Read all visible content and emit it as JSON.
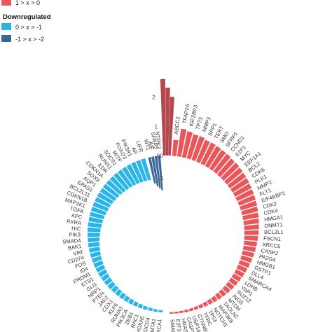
{
  "legend": {
    "up_item": {
      "label": "1 > x > 0",
      "color": "#e8575a"
    },
    "title": "Downregulated",
    "down_items": [
      {
        "label": "0 > x > -1",
        "color": "#29b5e8"
      },
      {
        "label": "-1 > x > -2",
        "color": "#3a6595"
      }
    ]
  },
  "colors": {
    "up_dark": "#b5484f",
    "up": "#e8575a",
    "down": "#29b5e8",
    "down_dark": "#3a6595"
  },
  "chart_data": {
    "type": "bar",
    "layout": "circular",
    "radial_ticks": [
      "2",
      "1",
      "0"
    ],
    "down_ticks": [
      "0",
      "1"
    ],
    "dark_up": [
      {
        "value": 2.6
      },
      {
        "value": 2.3
      },
      {
        "value": 2.0
      }
    ],
    "up_series": {
      "labels": [
        "ABCC2",
        "TFAP2A",
        "IGF2BP3",
        "TP73",
        "MMP3",
        "SPP1",
        "TERT",
        "SMO",
        "SFRP1",
        "CCND1",
        "E2F1",
        "MYC",
        "EEF1A1",
        "BCL2",
        "CDK6",
        "PLK1",
        "MMP2",
        "FLT1",
        "EIF4EBP1",
        "CDK2",
        "CDK4",
        "HMGA1",
        "DNMT1",
        "BCL2L1",
        "FSCN1",
        "XRCC5",
        "CASP2",
        "PA2G4",
        "HMGB1",
        "GSTP1",
        "DLL4",
        "SMARCA4",
        "LDHB",
        "YAP1",
        "SUZ12",
        "ING5",
        "MTDH",
        "TAGLN2",
        "MAP3K8",
        "NOTCH1",
        "TP53",
        "TFRC",
        "CTNNB1",
        "USP14",
        "CASP3",
        "HRAS",
        "E2F3",
        "SMAD4"
      ],
      "values": [
        0.55,
        0.95,
        0.9,
        0.85,
        0.85,
        0.8,
        0.8,
        0.78,
        0.76,
        0.75,
        0.72,
        0.72,
        0.7,
        0.68,
        0.66,
        0.64,
        0.62,
        0.6,
        0.58,
        0.56,
        0.54,
        0.52,
        0.5,
        0.48,
        0.46,
        0.44,
        0.42,
        0.4,
        0.38,
        0.36,
        0.34,
        0.32,
        0.3,
        0.28,
        0.26,
        0.24,
        0.22,
        0.2,
        0.18,
        0.16,
        0.14,
        0.12,
        0.1,
        0.09,
        0.08,
        0.07,
        0.06,
        0.05
      ]
    },
    "down_dark_series": {
      "labels": [
        "NTRK3",
        "SFRP2",
        "AIF",
        "WT1"
      ],
      "values": [
        -1.55,
        -1.45,
        -1.35,
        -1.2
      ]
    },
    "down_series": {
      "labels": [
        "LIFR",
        "AR",
        "PIK3R1",
        "FOXO3",
        "MITF",
        "SOCS1",
        "RUNX1",
        "KDR",
        "CDKN1A",
        "SOX9",
        "AQP1",
        "EPAS1",
        "BCL2L11",
        "CDKN1B",
        "MAP2K1",
        "TGFA",
        "APC",
        "RXRA",
        "HIC",
        "PIK3",
        "SMAD4",
        "BAK1",
        "VIM",
        "CD274",
        "FOS",
        "ID4",
        "PRDM1",
        "ETS1",
        "GLI1",
        "NRP1",
        "PTEN",
        "JAK2",
        "CDX1",
        "KLF6",
        "RUNX3",
        "PIK3CA",
        "ZEB1",
        "RAC1",
        "HOXA5",
        "PDCD4",
        "CAMTA1",
        "BRCA1"
      ],
      "values": [
        -0.99,
        -0.97,
        -0.95,
        -0.93,
        -0.91,
        -0.89,
        -0.87,
        -0.85,
        -0.82,
        -0.8,
        -0.78,
        -0.75,
        -0.72,
        -0.7,
        -0.67,
        -0.64,
        -0.62,
        -0.6,
        -0.57,
        -0.55,
        -0.52,
        -0.5,
        -0.48,
        -0.45,
        -0.43,
        -0.41,
        -0.39,
        -0.37,
        -0.35,
        -0.33,
        -0.31,
        -0.29,
        -0.27,
        -0.25,
        -0.23,
        -0.21,
        -0.19,
        -0.17,
        -0.15,
        -0.13,
        -0.11,
        -0.09
      ]
    }
  }
}
